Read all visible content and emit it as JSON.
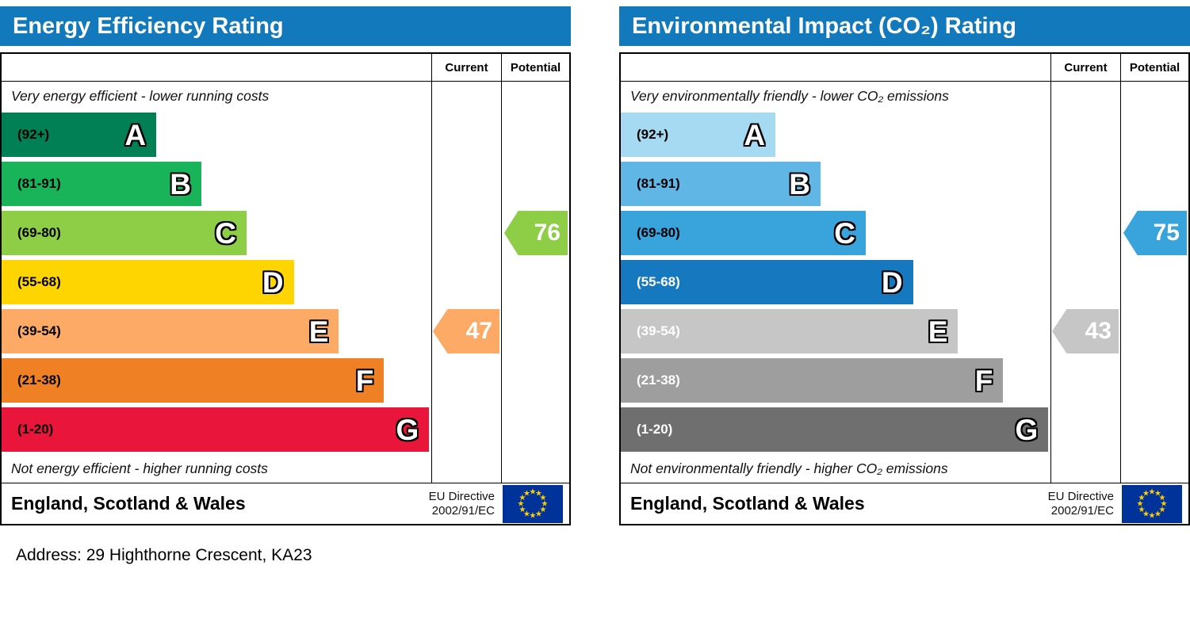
{
  "address_label": "Address: 29 Highthorne Crescent, KA23",
  "eu_flag": {
    "background": "#003399",
    "star_color": "#ffcc00"
  },
  "chart_data": [
    {
      "type": "bar",
      "title": "Energy Efficiency Rating",
      "header_color": "#1279bd",
      "columns": {
        "current": "Current",
        "potential": "Potential"
      },
      "top_caption": "Very energy efficient - lower running costs",
      "bottom_caption": "Not energy efficient - higher running costs",
      "footer_region": "England, Scotland & Wales",
      "directive_line1": "EU Directive",
      "directive_line2": "2002/91/EC",
      "bands": [
        {
          "grade": "A",
          "range": "(92+)",
          "color": "#008054",
          "label_color": "#000000",
          "width_pct": 36
        },
        {
          "grade": "B",
          "range": "(81-91)",
          "color": "#19b459",
          "label_color": "#000000",
          "width_pct": 46.5
        },
        {
          "grade": "C",
          "range": "(69-80)",
          "color": "#8dce46",
          "label_color": "#000000",
          "width_pct": 57
        },
        {
          "grade": "D",
          "range": "(55-68)",
          "color": "#ffd500",
          "label_color": "#000000",
          "width_pct": 68
        },
        {
          "grade": "E",
          "range": "(39-54)",
          "color": "#fcaa65",
          "label_color": "#000000",
          "width_pct": 78.5
        },
        {
          "grade": "F",
          "range": "(21-38)",
          "color": "#ef8023",
          "label_color": "#000000",
          "width_pct": 89
        },
        {
          "grade": "G",
          "range": "(1-20)",
          "color": "#e9153b",
          "label_color": "#000000",
          "width_pct": 99.5
        }
      ],
      "current": {
        "value": 47,
        "band": "E",
        "band_index": 4,
        "color": "#fcaa65"
      },
      "potential": {
        "value": 76,
        "band": "C",
        "band_index": 2,
        "color": "#8dce46"
      }
    },
    {
      "type": "bar",
      "title": "Environmental Impact (CO₂) Rating",
      "header_color": "#1279bd",
      "columns": {
        "current": "Current",
        "potential": "Potential"
      },
      "top_caption": "Very environmentally friendly - lower CO₂ emissions",
      "bottom_caption": "Not environmentally friendly - higher CO₂ emissions",
      "footer_region": "England, Scotland & Wales",
      "directive_line1": "EU Directive",
      "directive_line2": "2002/91/EC",
      "bands": [
        {
          "grade": "A",
          "range": "(92+)",
          "color": "#a6d9f2",
          "label_color": "#000000",
          "width_pct": 36
        },
        {
          "grade": "B",
          "range": "(81-91)",
          "color": "#60b7e6",
          "label_color": "#000000",
          "width_pct": 46.5
        },
        {
          "grade": "C",
          "range": "(69-80)",
          "color": "#39a3db",
          "label_color": "#000000",
          "width_pct": 57
        },
        {
          "grade": "D",
          "range": "(55-68)",
          "color": "#1679bf",
          "label_color": "#ffffff",
          "width_pct": 68
        },
        {
          "grade": "E",
          "range": "(39-54)",
          "color": "#c6c6c6",
          "label_color": "#ffffff",
          "width_pct": 78.5
        },
        {
          "grade": "F",
          "range": "(21-38)",
          "color": "#9e9e9e",
          "label_color": "#ffffff",
          "width_pct": 89
        },
        {
          "grade": "G",
          "range": "(1-20)",
          "color": "#6f6f6f",
          "label_color": "#ffffff",
          "width_pct": 99.5
        }
      ],
      "current": {
        "value": 43,
        "band": "E",
        "band_index": 4,
        "color": "#c6c6c6"
      },
      "potential": {
        "value": 75,
        "band": "C",
        "band_index": 2,
        "color": "#39a3db"
      }
    }
  ]
}
